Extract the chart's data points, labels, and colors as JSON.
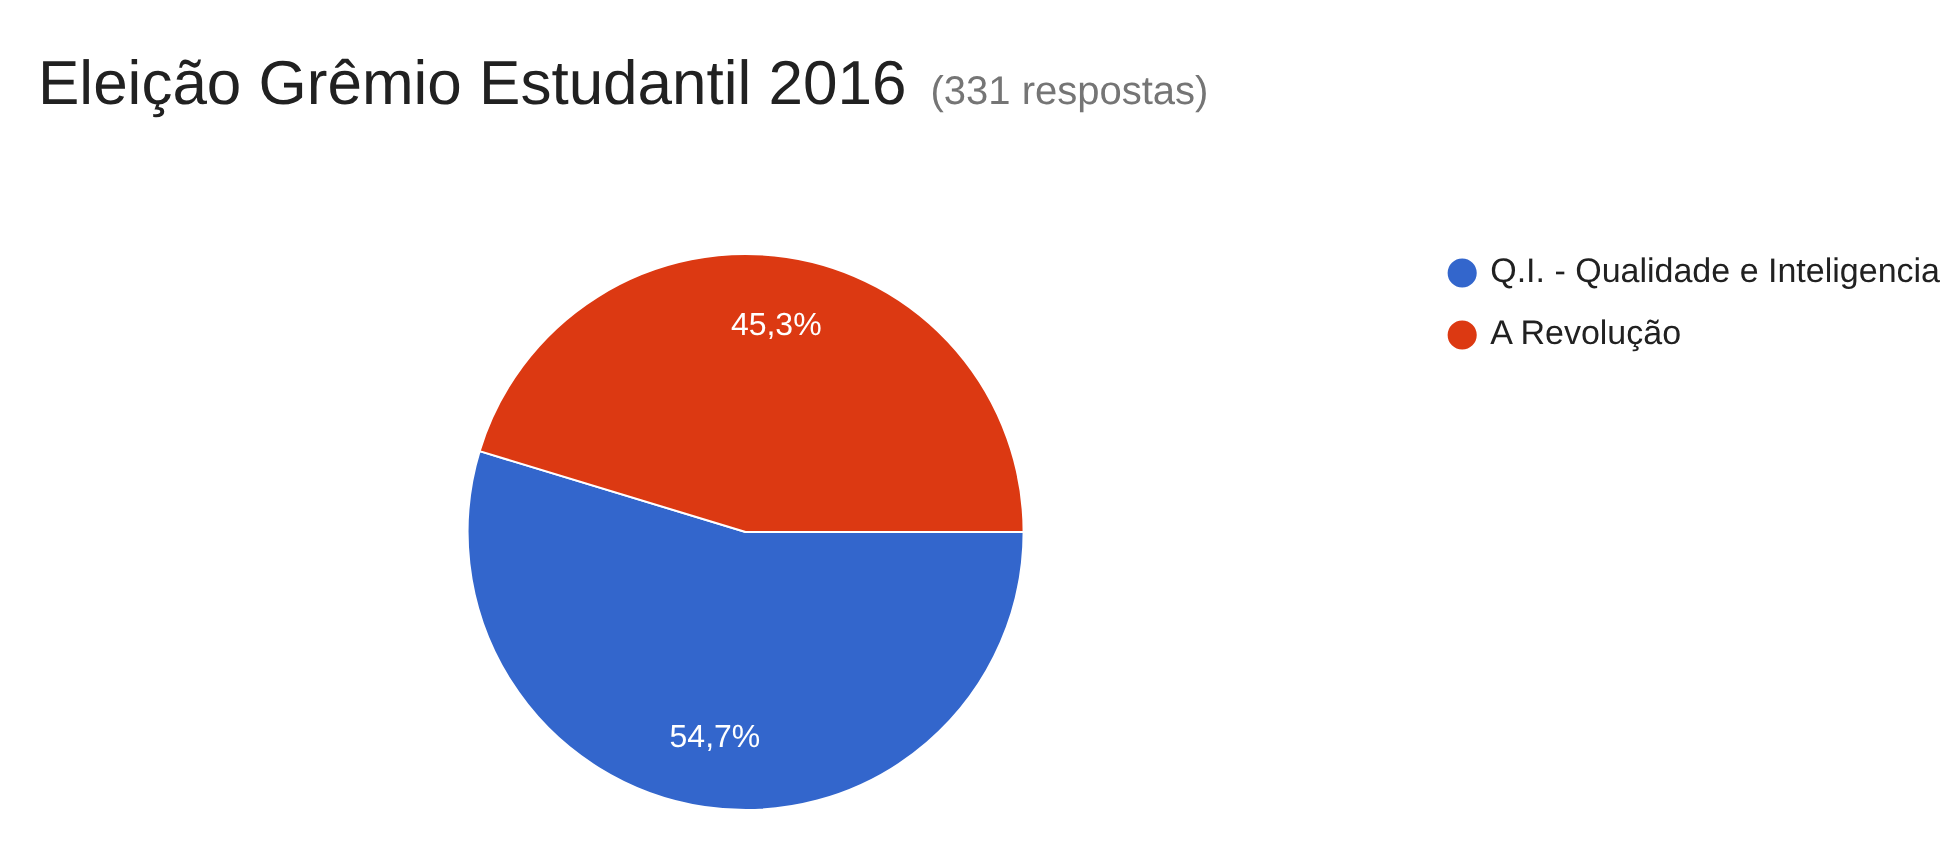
{
  "chart_data": {
    "type": "pie",
    "title": "Eleição Grêmio Estudantil 2016",
    "subtitle": "(331 respostas)",
    "categories": [
      "Q.I. - Qualidade e Inteligencia",
      "A Revolução"
    ],
    "values": [
      54.7,
      45.3
    ],
    "colors": [
      "#3366cc",
      "#dc3912"
    ],
    "value_labels": [
      "54,7%",
      "45,3%"
    ],
    "legend": "right"
  }
}
